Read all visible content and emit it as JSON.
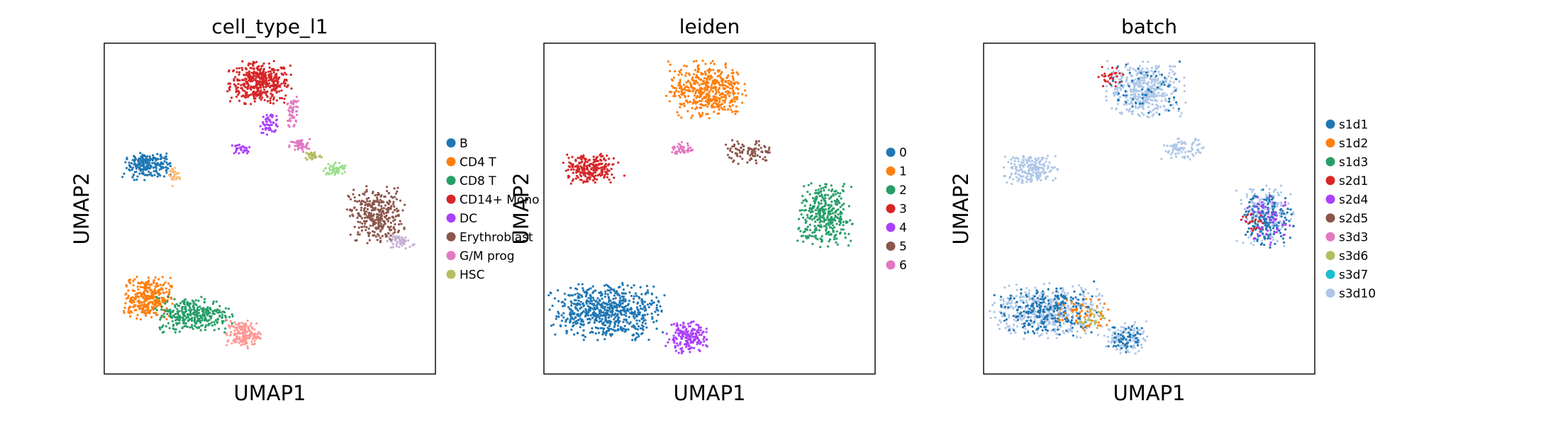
{
  "chart_data": [
    {
      "type": "scatter",
      "title": "cell_type_l1",
      "xlabel": "UMAP1",
      "ylabel": "UMAP2",
      "grid": false,
      "legend_placement": "right",
      "legend": [
        {
          "name": "B",
          "color": "#1f77b4"
        },
        {
          "name": "CD4 T",
          "color": "#ff7f0e"
        },
        {
          "name": "CD8 T",
          "color": "#279e68"
        },
        {
          "name": "CD14+ Mono",
          "color": "#d62728"
        },
        {
          "name": "DC",
          "color": "#aa40fc"
        },
        {
          "name": "Erythroblast",
          "color": "#8c564b"
        },
        {
          "name": "G/M prog",
          "color": "#e377c2"
        },
        {
          "name": "HSC",
          "color": "#b5bd61"
        }
      ],
      "clusters": [
        {
          "color": "#d62728",
          "x": 0.47,
          "y": 0.88,
          "rx": 0.09,
          "ry": 0.06,
          "n": 420
        },
        {
          "color": "#e377c2",
          "x": 0.57,
          "y": 0.79,
          "rx": 0.02,
          "ry": 0.05,
          "n": 50
        },
        {
          "color": "#aa40fc",
          "x": 0.5,
          "y": 0.76,
          "rx": 0.03,
          "ry": 0.03,
          "n": 60
        },
        {
          "color": "#aa40fc",
          "x": 0.41,
          "y": 0.68,
          "rx": 0.03,
          "ry": 0.015,
          "n": 35
        },
        {
          "color": "#e377c2",
          "x": 0.59,
          "y": 0.69,
          "rx": 0.03,
          "ry": 0.02,
          "n": 45
        },
        {
          "color": "#b5bd61",
          "x": 0.63,
          "y": 0.66,
          "rx": 0.025,
          "ry": 0.015,
          "n": 40
        },
        {
          "color": "#98df8a",
          "x": 0.7,
          "y": 0.62,
          "rx": 0.035,
          "ry": 0.02,
          "n": 60
        },
        {
          "color": "#8c564b",
          "x": 0.82,
          "y": 0.48,
          "rx": 0.08,
          "ry": 0.08,
          "n": 330
        },
        {
          "color": "#c5b0d5",
          "x": 0.9,
          "y": 0.4,
          "rx": 0.04,
          "ry": 0.02,
          "n": 50
        },
        {
          "color": "#1f77b4",
          "x": 0.13,
          "y": 0.63,
          "rx": 0.07,
          "ry": 0.04,
          "n": 220
        },
        {
          "color": "#ffbb78",
          "x": 0.21,
          "y": 0.6,
          "rx": 0.02,
          "ry": 0.03,
          "n": 30
        },
        {
          "color": "#ff7f0e",
          "x": 0.13,
          "y": 0.23,
          "rx": 0.07,
          "ry": 0.06,
          "n": 330
        },
        {
          "color": "#279e68",
          "x": 0.27,
          "y": 0.18,
          "rx": 0.11,
          "ry": 0.05,
          "n": 330
        },
        {
          "color": "#ff9896",
          "x": 0.42,
          "y": 0.12,
          "rx": 0.05,
          "ry": 0.04,
          "n": 170
        }
      ]
    },
    {
      "type": "scatter",
      "title": "leiden",
      "xlabel": "UMAP1",
      "ylabel": "UMAP2",
      "grid": false,
      "legend_placement": "right",
      "legend": [
        {
          "name": "0",
          "color": "#1f77b4"
        },
        {
          "name": "1",
          "color": "#ff7f0e"
        },
        {
          "name": "2",
          "color": "#279e68"
        },
        {
          "name": "3",
          "color": "#d62728"
        },
        {
          "name": "4",
          "color": "#aa40fc"
        },
        {
          "name": "5",
          "color": "#8c564b"
        },
        {
          "name": "6",
          "color": "#e377c2"
        }
      ],
      "clusters": [
        {
          "color": "#ff7f0e",
          "x": 0.49,
          "y": 0.86,
          "rx": 0.11,
          "ry": 0.08,
          "n": 470
        },
        {
          "color": "#e377c2",
          "x": 0.42,
          "y": 0.68,
          "rx": 0.035,
          "ry": 0.02,
          "n": 40
        },
        {
          "color": "#8c564b",
          "x": 0.62,
          "y": 0.67,
          "rx": 0.07,
          "ry": 0.035,
          "n": 90
        },
        {
          "color": "#279e68",
          "x": 0.85,
          "y": 0.48,
          "rx": 0.08,
          "ry": 0.09,
          "n": 350
        },
        {
          "color": "#d62728",
          "x": 0.14,
          "y": 0.62,
          "rx": 0.08,
          "ry": 0.045,
          "n": 230
        },
        {
          "color": "#1f77b4",
          "x": 0.19,
          "y": 0.19,
          "rx": 0.16,
          "ry": 0.08,
          "n": 650
        },
        {
          "color": "#aa40fc",
          "x": 0.43,
          "y": 0.11,
          "rx": 0.06,
          "ry": 0.045,
          "n": 190
        }
      ]
    },
    {
      "type": "scatter",
      "title": "batch",
      "xlabel": "UMAP1",
      "ylabel": "UMAP2",
      "grid": false,
      "legend_placement": "right",
      "legend": [
        {
          "name": "s1d1",
          "color": "#1f77b4"
        },
        {
          "name": "s1d2",
          "color": "#ff7f0e"
        },
        {
          "name": "s1d3",
          "color": "#279e68"
        },
        {
          "name": "s2d1",
          "color": "#d62728"
        },
        {
          "name": "s2d4",
          "color": "#aa40fc"
        },
        {
          "name": "s2d5",
          "color": "#8c564b"
        },
        {
          "name": "s3d3",
          "color": "#e377c2"
        },
        {
          "name": "s3d6",
          "color": "#b5bd61"
        },
        {
          "name": "s3d7",
          "color": "#17becf"
        },
        {
          "name": "s3d10",
          "color": "#aec7e8"
        }
      ],
      "clusters": [
        {
          "color": "#aec7e8",
          "x": 0.49,
          "y": 0.86,
          "rx": 0.11,
          "ry": 0.08,
          "n": 400
        },
        {
          "color": "#1f77b4",
          "x": 0.49,
          "y": 0.86,
          "rx": 0.11,
          "ry": 0.08,
          "n": 60
        },
        {
          "color": "#d62728",
          "x": 0.38,
          "y": 0.9,
          "rx": 0.04,
          "ry": 0.03,
          "n": 30
        },
        {
          "color": "#aec7e8",
          "x": 0.6,
          "y": 0.68,
          "rx": 0.06,
          "ry": 0.03,
          "n": 80
        },
        {
          "color": "#aec7e8",
          "x": 0.85,
          "y": 0.48,
          "rx": 0.08,
          "ry": 0.09,
          "n": 200
        },
        {
          "color": "#1f77b4",
          "x": 0.86,
          "y": 0.47,
          "rx": 0.07,
          "ry": 0.08,
          "n": 160
        },
        {
          "color": "#aa40fc",
          "x": 0.86,
          "y": 0.46,
          "rx": 0.07,
          "ry": 0.07,
          "n": 60
        },
        {
          "color": "#d62728",
          "x": 0.82,
          "y": 0.46,
          "rx": 0.04,
          "ry": 0.03,
          "n": 20
        },
        {
          "color": "#aec7e8",
          "x": 0.14,
          "y": 0.62,
          "rx": 0.08,
          "ry": 0.045,
          "n": 200
        },
        {
          "color": "#aec7e8",
          "x": 0.19,
          "y": 0.19,
          "rx": 0.16,
          "ry": 0.08,
          "n": 450
        },
        {
          "color": "#1f77b4",
          "x": 0.19,
          "y": 0.19,
          "rx": 0.15,
          "ry": 0.07,
          "n": 250
        },
        {
          "color": "#ff7f0e",
          "x": 0.3,
          "y": 0.18,
          "rx": 0.08,
          "ry": 0.05,
          "n": 60
        },
        {
          "color": "#b5bd61",
          "x": 0.33,
          "y": 0.17,
          "rx": 0.04,
          "ry": 0.03,
          "n": 25
        },
        {
          "color": "#aec7e8",
          "x": 0.43,
          "y": 0.11,
          "rx": 0.06,
          "ry": 0.045,
          "n": 120
        },
        {
          "color": "#1f77b4",
          "x": 0.43,
          "y": 0.11,
          "rx": 0.05,
          "ry": 0.04,
          "n": 60
        }
      ]
    }
  ]
}
